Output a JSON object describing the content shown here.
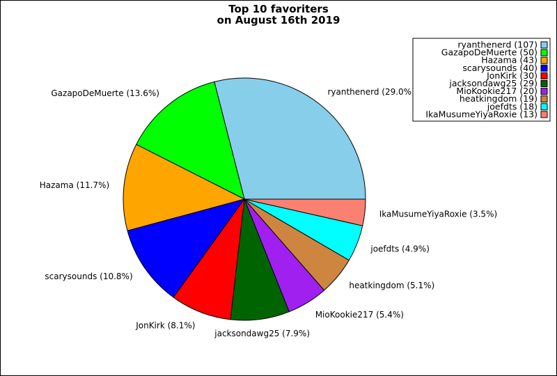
{
  "chart_data": {
    "type": "pie",
    "title_lines": [
      "Top 10 favoriters",
      "on August 16th 2019"
    ],
    "slices": [
      {
        "name": "ryanthenerd",
        "value": 107,
        "label": "ryanthenerd (29.0%)",
        "legend": "ryanthenerd (107)",
        "color": "#87ceeb"
      },
      {
        "name": "GazapoDeMuerte",
        "value": 50,
        "label": "GazapoDeMuerte (13.6%)",
        "legend": "GazapoDeMuerte (50)",
        "color": "#00ff00"
      },
      {
        "name": "Hazama",
        "value": 43,
        "label": "Hazama (11.7%)",
        "legend": "Hazama (43)",
        "color": "#ffa500"
      },
      {
        "name": "scarysounds",
        "value": 40,
        "label": "scarysounds (10.8%)",
        "legend": "scarysounds (40)",
        "color": "#0000ff"
      },
      {
        "name": "JonKirk",
        "value": 30,
        "label": "JonKirk (8.1%)",
        "legend": "JonKirk (30)",
        "color": "#ff0000"
      },
      {
        "name": "jacksondawg25",
        "value": 29,
        "label": "jacksondawg25 (7.9%)",
        "legend": "jacksondawg25 (29)",
        "color": "#006400"
      },
      {
        "name": "MioKookie217",
        "value": 20,
        "label": "MioKookie217 (5.4%)",
        "legend": "MioKookie217 (20)",
        "color": "#a020f0"
      },
      {
        "name": "heatkingdom",
        "value": 19,
        "label": "heatkingdom (5.1%)",
        "legend": "heatkingdom (19)",
        "color": "#cd853f"
      },
      {
        "name": "joefdts",
        "value": 18,
        "label": "joefdts (4.9%)",
        "legend": "joefdts (18)",
        "color": "#00ffff"
      },
      {
        "name": "IkaMusumeYiyaRoxie",
        "value": 13,
        "label": "IkaMusumeYiyaRoxie (3.5%)",
        "legend": "IkaMusumeYiyaRoxie (13)",
        "color": "#fa8072"
      }
    ],
    "legend_position": "top-right",
    "start_angle": "3 o'clock",
    "direction": "counterclockwise"
  }
}
